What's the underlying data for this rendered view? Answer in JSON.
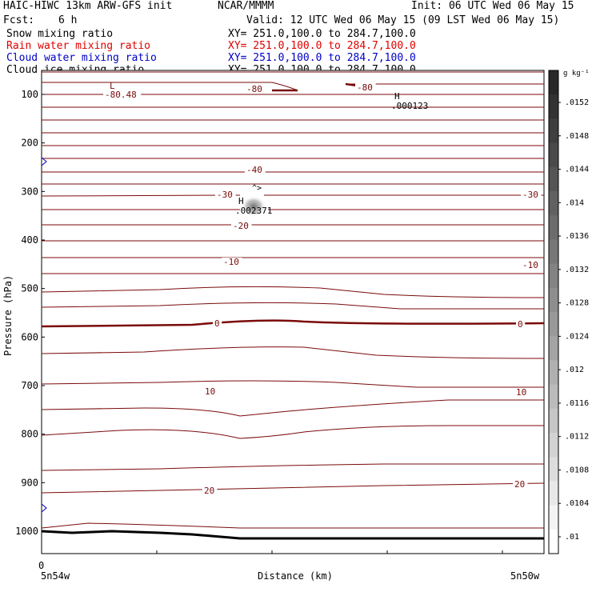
{
  "header": {
    "title": "HAIC-HIWC 13km ARW-GFS init",
    "org": "NCAR/MMMM",
    "init": "Init: 06 UTC Wed 06 May 15",
    "fcst_label": "Fcst:",
    "fcst_value": "6 h",
    "valid": "Valid: 12 UTC Wed 06 May 15 (09 LST Wed 06 May 15)"
  },
  "fields": [
    {
      "name": "Snow mixing ratio",
      "xy": "XY= 251.0,100.0 to 284.7,100.0",
      "color": "#000000"
    },
    {
      "name": "Rain water mixing ratio",
      "xy": "XY= 251.0,100.0 to 284.7,100.0",
      "color": "#e00000"
    },
    {
      "name": "Cloud water mixing ratio",
      "xy": "XY= 251.0,100.0 to 284.7,100.0",
      "color": "#0000c8"
    },
    {
      "name": "Cloud ice mixing ratio",
      "xy": "XY= 251.0,100.0 to 284.7,100.0",
      "color": "#000000"
    }
  ],
  "chart_data": {
    "type": "contour",
    "ylabel": "Pressure (hPa)",
    "xlabel": "Distance (km)",
    "y_ticks": [
      100,
      200,
      300,
      400,
      500,
      600,
      700,
      800,
      900,
      1000
    ],
    "x_tick_label": "0",
    "x_left_label": "5n54w",
    "x_right_label": "5n50w",
    "colorbar_unit": "g kg⁻¹",
    "colorbar_ticks": [
      ".0152",
      ".0148",
      ".0144",
      ".014",
      ".0136",
      ".0132",
      ".0128",
      ".0124",
      ".012",
      ".0116",
      ".0112",
      ".0108",
      ".0104",
      ".01"
    ],
    "contour_labels": [
      "-80.48",
      "-80",
      "-80",
      "-40",
      "-30",
      "-30",
      "-20",
      "-10",
      "-10",
      "0",
      "0",
      "10",
      "10",
      "20",
      "20"
    ],
    "extrema": [
      {
        "symbol": "L",
        "value": ""
      },
      {
        "symbol": "H",
        "value": ".000123"
      },
      {
        "symbol": "H",
        "value": ".002371"
      }
    ],
    "contour_color": "#7a0a0a",
    "ground_color": "#000000"
  }
}
